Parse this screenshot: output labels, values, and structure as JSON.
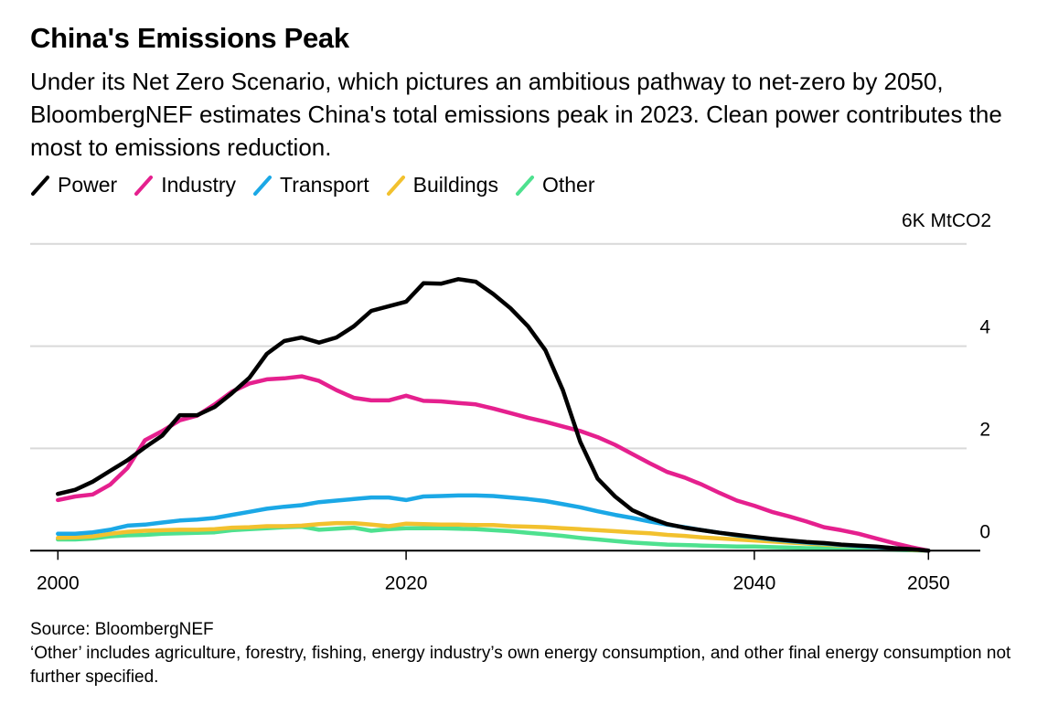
{
  "header": {
    "title": "China's Emissions Peak",
    "subtitle": "Under its Net Zero Scenario, which pictures an ambitious pathway to net-zero by 2050, BloombergNEF estimates China's total emissions peak in 2023. Clean power contributes the most to emissions reduction."
  },
  "footer": {
    "source": "Source: BloombergNEF",
    "note": "‘Other’ includes agriculture, forestry, fishing, energy industry’s own energy consumption, and other final energy consumption not further specified."
  },
  "chart_data": {
    "type": "line",
    "title": "China's Emissions Peak",
    "unit_label": "6K MtCO2",
    "xlabel": "",
    "ylabel": "MtCO2 (thousands)",
    "xlim": [
      2000,
      2050
    ],
    "ylim": [
      0,
      6
    ],
    "yticks": [
      0,
      2,
      4,
      6
    ],
    "ytick_labels": [
      "0",
      "2",
      "4",
      "6K MtCO2"
    ],
    "xticks": [
      2000,
      2020,
      2040,
      2050
    ],
    "xtick_labels": [
      "2000",
      "2020",
      "2040",
      "2050"
    ],
    "grid": true,
    "legend_position": "top-left",
    "x": [
      2000,
      2001,
      2002,
      2003,
      2004,
      2005,
      2006,
      2007,
      2008,
      2009,
      2010,
      2011,
      2012,
      2013,
      2014,
      2015,
      2016,
      2017,
      2018,
      2019,
      2020,
      2021,
      2022,
      2023,
      2024,
      2025,
      2026,
      2027,
      2028,
      2029,
      2030,
      2031,
      2032,
      2033,
      2034,
      2035,
      2036,
      2037,
      2038,
      2039,
      2040,
      2041,
      2042,
      2043,
      2044,
      2045,
      2046,
      2047,
      2048,
      2049,
      2050
    ],
    "series": [
      {
        "name": "Power",
        "color": "#000000",
        "values": [
          1.11,
          1.19,
          1.35,
          1.56,
          1.77,
          2.02,
          2.25,
          2.65,
          2.65,
          2.81,
          3.08,
          3.38,
          3.85,
          4.1,
          4.17,
          4.07,
          4.17,
          4.39,
          4.69,
          4.78,
          4.87,
          5.23,
          5.22,
          5.31,
          5.26,
          5.02,
          4.74,
          4.39,
          3.92,
          3.14,
          2.13,
          1.41,
          1.06,
          0.79,
          0.64,
          0.52,
          0.45,
          0.4,
          0.35,
          0.31,
          0.27,
          0.23,
          0.2,
          0.17,
          0.15,
          0.12,
          0.1,
          0.08,
          0.05,
          0.03,
          0.0
        ]
      },
      {
        "name": "Industry",
        "color": "#e5208e",
        "values": [
          0.99,
          1.06,
          1.1,
          1.29,
          1.62,
          2.16,
          2.34,
          2.55,
          2.64,
          2.86,
          3.11,
          3.27,
          3.35,
          3.37,
          3.41,
          3.32,
          3.14,
          2.99,
          2.94,
          2.94,
          3.03,
          2.93,
          2.92,
          2.89,
          2.86,
          2.78,
          2.69,
          2.6,
          2.52,
          2.43,
          2.34,
          2.22,
          2.07,
          1.89,
          1.71,
          1.54,
          1.43,
          1.29,
          1.13,
          0.98,
          0.88,
          0.76,
          0.67,
          0.57,
          0.46,
          0.4,
          0.33,
          0.24,
          0.15,
          0.07,
          0.0
        ]
      },
      {
        "name": "Transport",
        "color": "#1ba8e6",
        "values": [
          0.33,
          0.33,
          0.36,
          0.41,
          0.49,
          0.51,
          0.55,
          0.59,
          0.61,
          0.64,
          0.7,
          0.76,
          0.82,
          0.86,
          0.89,
          0.95,
          0.98,
          1.01,
          1.04,
          1.04,
          0.99,
          1.06,
          1.07,
          1.08,
          1.08,
          1.07,
          1.04,
          1.01,
          0.97,
          0.91,
          0.85,
          0.77,
          0.7,
          0.64,
          0.57,
          0.51,
          0.46,
          0.4,
          0.35,
          0.3,
          0.26,
          0.22,
          0.19,
          0.16,
          0.14,
          0.11,
          0.09,
          0.07,
          0.05,
          0.03,
          0.0
        ]
      },
      {
        "name": "Buildings",
        "color": "#f2c12e",
        "values": [
          0.25,
          0.26,
          0.28,
          0.33,
          0.37,
          0.39,
          0.4,
          0.41,
          0.41,
          0.42,
          0.45,
          0.46,
          0.48,
          0.48,
          0.49,
          0.52,
          0.54,
          0.54,
          0.51,
          0.48,
          0.53,
          0.52,
          0.51,
          0.51,
          0.5,
          0.5,
          0.48,
          0.47,
          0.46,
          0.44,
          0.42,
          0.4,
          0.38,
          0.36,
          0.34,
          0.31,
          0.29,
          0.26,
          0.24,
          0.22,
          0.2,
          0.18,
          0.16,
          0.14,
          0.12,
          0.1,
          0.09,
          0.07,
          0.05,
          0.02,
          0.0
        ]
      },
      {
        "name": "Other",
        "color": "#4ee18f",
        "values": [
          0.22,
          0.22,
          0.24,
          0.28,
          0.3,
          0.31,
          0.33,
          0.34,
          0.35,
          0.36,
          0.4,
          0.42,
          0.44,
          0.46,
          0.47,
          0.41,
          0.43,
          0.45,
          0.39,
          0.42,
          0.44,
          0.44,
          0.44,
          0.43,
          0.42,
          0.4,
          0.38,
          0.35,
          0.32,
          0.29,
          0.25,
          0.22,
          0.19,
          0.16,
          0.14,
          0.12,
          0.11,
          0.1,
          0.09,
          0.08,
          0.08,
          0.07,
          0.06,
          0.05,
          0.05,
          0.04,
          0.04,
          0.03,
          0.02,
          0.01,
          0.0
        ]
      }
    ]
  }
}
